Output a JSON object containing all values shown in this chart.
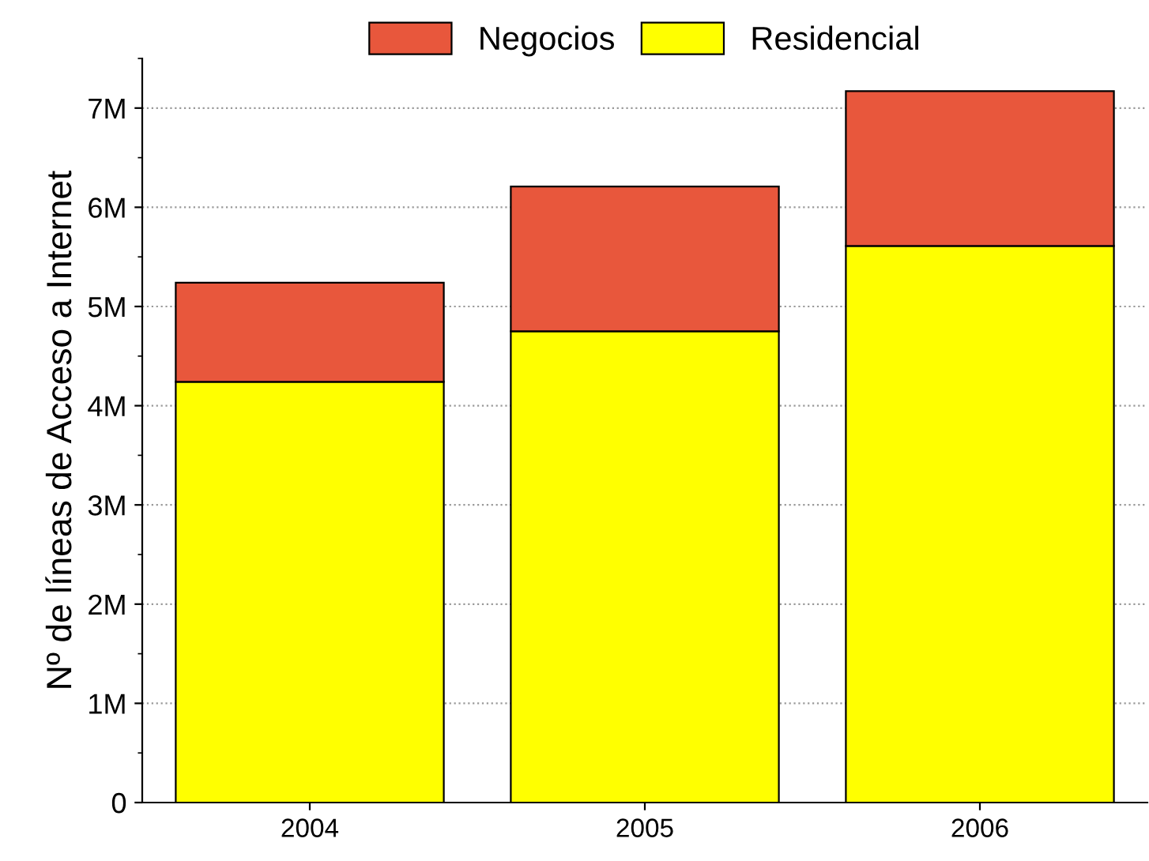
{
  "chart_data": {
    "type": "bar",
    "stacked": true,
    "ylabel": "Nº de líneas de Acceso a Internet",
    "categories": [
      "2004",
      "2005",
      "2006"
    ],
    "series": [
      {
        "name": "Residencial",
        "color": "#ffff00",
        "values": [
          4.24,
          4.75,
          5.61
        ]
      },
      {
        "name": "Negocios",
        "color": "#e8573c",
        "values": [
          1.0,
          1.46,
          1.56
        ]
      }
    ],
    "ylim": [
      0,
      7.5
    ],
    "yticks": [
      0,
      {
        "value": 1,
        "label": "1M"
      },
      {
        "value": 2,
        "label": "2M"
      },
      {
        "value": 3,
        "label": "3M"
      },
      {
        "value": 4,
        "label": "4M"
      },
      {
        "value": 5,
        "label": "5M"
      },
      {
        "value": 6,
        "label": "6M"
      },
      {
        "value": 7,
        "label": "7M"
      }
    ],
    "grid": "y",
    "legend": "top"
  }
}
